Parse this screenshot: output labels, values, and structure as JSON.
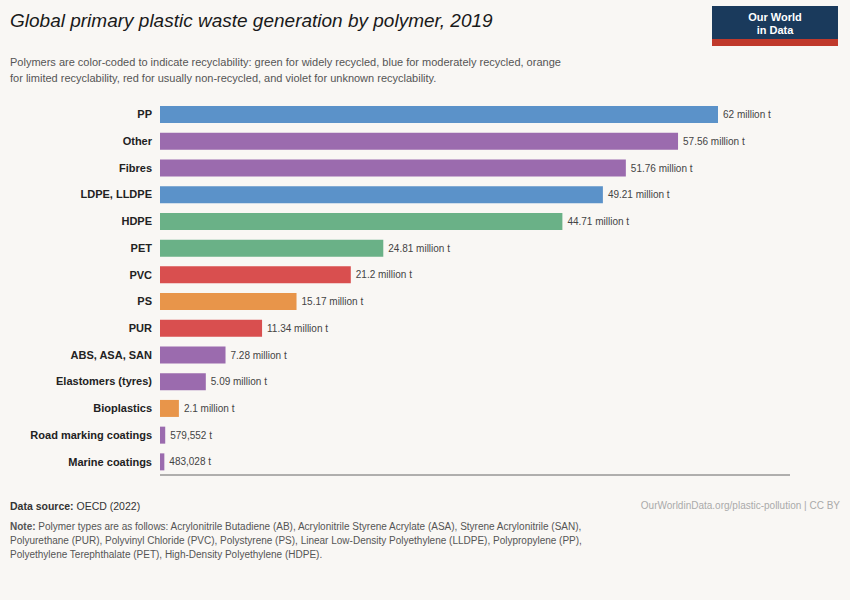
{
  "chart_data": {
    "type": "bar",
    "orientation": "horizontal",
    "title": "Global primary plastic waste generation by polymer, 2019",
    "subtitle": "Polymers are color-coded to indicate recyclability: green for widely recycled, blue for moderately recycled, orange\nfor limited recyclability, red for usually non-recycled, and violet for unknown recyclability.",
    "categories": [
      "PP",
      "Other",
      "Fibres",
      "LDPE, LLDPE",
      "HDPE",
      "PET",
      "PVC",
      "PS",
      "PUR",
      "ABS, ASA, SAN",
      "Elastomers (tyres)",
      "Bioplastics",
      "Road marking coatings",
      "Marine coatings"
    ],
    "values": [
      62,
      57.56,
      51.76,
      49.21,
      44.71,
      24.81,
      21.2,
      15.17,
      11.34,
      7.28,
      5.09,
      2.1,
      0.579552,
      0.483028
    ],
    "value_labels": [
      "62 million t",
      "57.56 million t",
      "51.76 million t",
      "49.21 million t",
      "44.71 million t",
      "24.81 million t",
      "21.2 million t",
      "15.17 million t",
      "11.34 million t",
      "7.28 million t",
      "5.09 million t",
      "2.1 million t",
      "579,552 t",
      "483,028 t"
    ],
    "data_labels": true,
    "colors": [
      "#5b92c9",
      "#9b6bae",
      "#9b6bae",
      "#5b92c9",
      "#6ab187",
      "#6ab187",
      "#d94f4f",
      "#e8954a",
      "#d94f4f",
      "#9b6bae",
      "#9b6bae",
      "#e8954a",
      "#9b6bae",
      "#9b6bae"
    ],
    "xlim": [
      0,
      70
    ],
    "grid": false,
    "tick_labels": "y",
    "annotations": [
      "Data source: OECD (2022)",
      "OurWorldinData.org/plastic-pollution | CC BY",
      "Note: Polymer types are as follows: Acrylonitrile Butadiene (AB), Acrylonitrile Styrene Acrylate (ASA), Styrene Acrylonitrile (SAN),\nPolyurethane (PUR), Polyvinyl Chloride (PVC), Polystyrene (PS), Linear Low-Density Polyethylene (LLDPE), Polypropylene (PP),\nPolyethylene Terephthalate (PET), High-Density Polyethylene (HDPE).",
      "Our World\nin Data"
    ]
  }
}
